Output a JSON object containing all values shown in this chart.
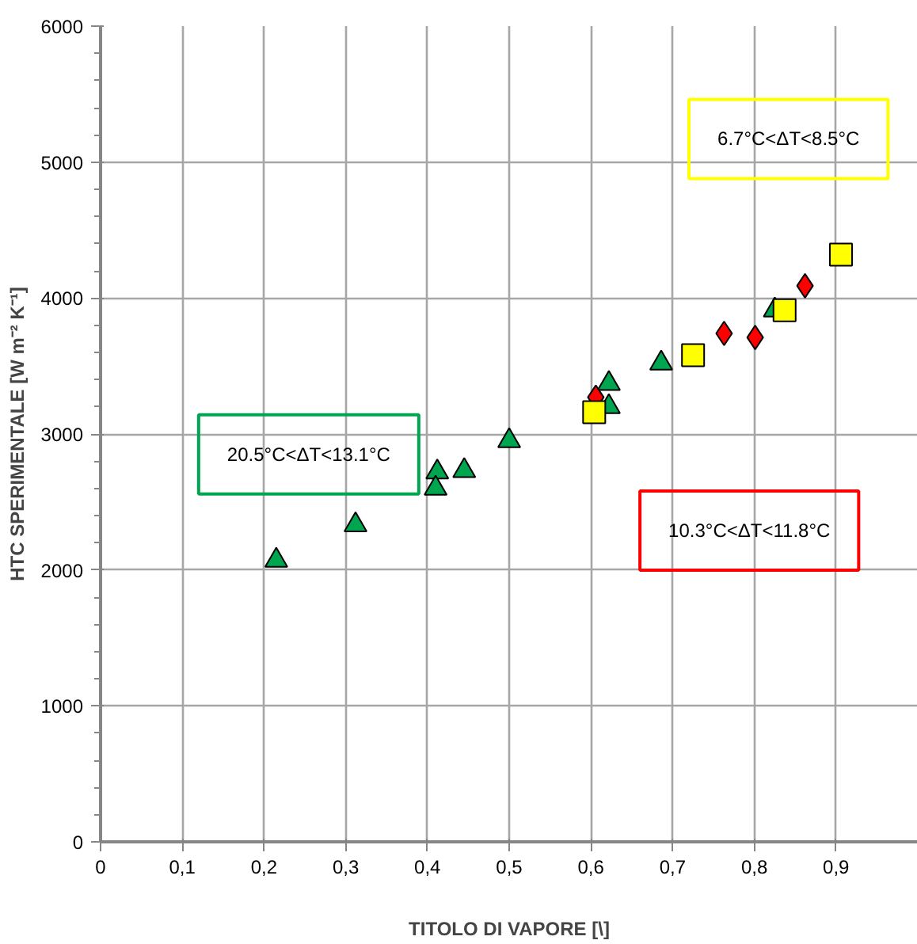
{
  "chart_data": {
    "type": "scatter",
    "xlabel": "TITOLO DI VAPORE [\\]",
    "ylabel": "HTC SPERIMENTALE [W m⁻² K⁻¹]",
    "xlim": [
      0,
      1
    ],
    "xticks": [
      {
        "value": 0,
        "label": "0"
      },
      {
        "value": 0.1,
        "label": "0,1"
      },
      {
        "value": 0.2,
        "label": "0,2"
      },
      {
        "value": 0.3,
        "label": "0,3"
      },
      {
        "value": 0.4,
        "label": "0,4"
      },
      {
        "value": 0.5,
        "label": "0,5"
      },
      {
        "value": 0.6,
        "label": "0,6"
      },
      {
        "value": 0.7,
        "label": "0,7"
      },
      {
        "value": 0.8,
        "label": "0,8"
      },
      {
        "value": 0.9,
        "label": "0,9"
      }
    ],
    "ylim": [
      0,
      6000
    ],
    "yticks": [
      0,
      1000,
      2000,
      3000,
      4000,
      5000,
      6000
    ],
    "grid": true,
    "series": [
      {
        "color": "#00a550",
        "marker": "triangle",
        "x": [
          0.215,
          0.312,
          0.412,
          0.41,
          0.445,
          0.5,
          0.622,
          0.622,
          0.686,
          0.825
        ],
        "values": [
          2070,
          2330,
          2720,
          2600,
          2730,
          2950,
          3370,
          3200,
          3520,
          3910
        ]
      },
      {
        "color": "#ff0000",
        "marker": "diamond",
        "x": [
          0.606,
          0.763,
          0.801,
          0.862
        ],
        "values": [
          3270,
          3740,
          3710,
          4090
        ]
      },
      {
        "color": "#ffff00",
        "marker": "square",
        "x": [
          0.604,
          0.725,
          0.837,
          0.906
        ],
        "values": [
          3160,
          3580,
          3910,
          4320
        ]
      }
    ],
    "annotations": [
      "20.5°C<ΔT<13.1°C",
      "10.3°C<ΔT<11.8°C",
      "6.7°C<ΔT<8.5°C"
    ]
  }
}
